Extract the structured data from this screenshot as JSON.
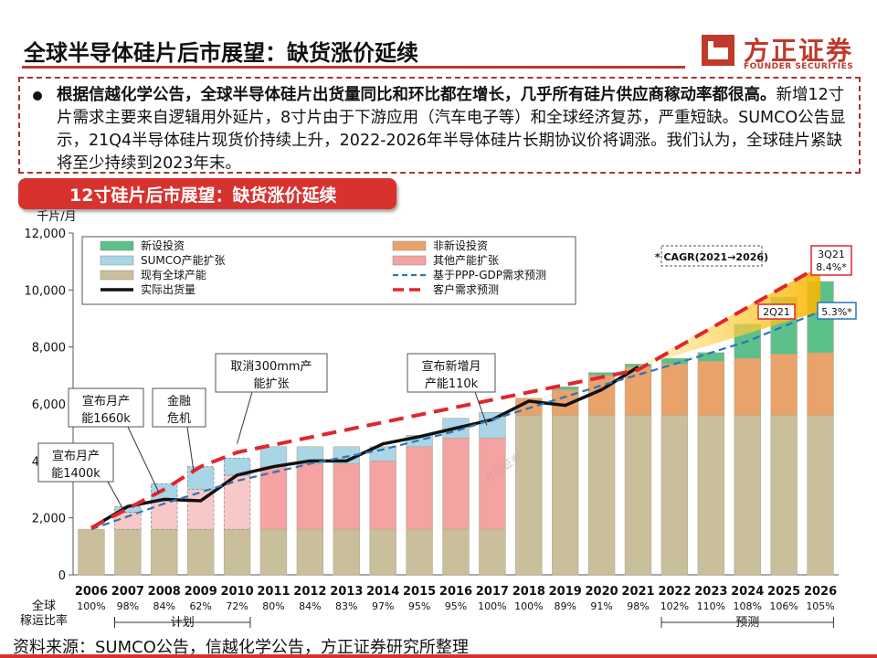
{
  "title": "全球半导体硅片后市展望：缺货涨价延续",
  "logo": {
    "cn": "方正证券",
    "en": "FOUNDER SECURITIES"
  },
  "summary": {
    "bold": "根据信越化学公告，全球半导体硅片出货量同比和环比都在增长，几乎所有硅片供应商稼动率都很高。",
    "text": "新增12寸片需求主要来自逻辑用外延片，8寸片由于下游应用（汽车电子等）和全球经济复苏，严重短缺。SUMCO公告显示，21Q4半导体硅片现货价持续上升，2022-2026年半导体硅片长期协议价将调涨。我们认为，全球硅片紧缺将至少持续到2023年末。"
  },
  "banner": "12寸硅片后市展望：缺货涨价延续",
  "source": "资料来源：SUMCO公告，信越化学公告，方正证券研究所整理",
  "colors": {
    "new_invest": "#5cc08a",
    "sumco_exp": "#a9d5e6",
    "existing": "#c9bf9b",
    "non_new": "#e9a36a",
    "other_exp": "#f4a2a2",
    "other_exp_light": "#f8c8c8",
    "actual": "#111111",
    "ppp": "#2e75b6",
    "customer": "#e0262d",
    "accent": "#d8322f"
  },
  "chart_data": {
    "type": "bar",
    "stacked": true,
    "unit": "千片/月",
    "ylim": [
      0,
      12000
    ],
    "yticks": [
      0,
      2000,
      4000,
      6000,
      8000,
      10000,
      12000
    ],
    "ytick_labels": [
      "0",
      "2,000",
      "4,000",
      "6,000",
      "8,000",
      "10,000",
      "12,000"
    ],
    "categories": [
      "2006",
      "2007",
      "2008",
      "2009",
      "2010",
      "2011",
      "2012",
      "2013",
      "2014",
      "2015",
      "2016",
      "2017",
      "2018",
      "2019",
      "2020",
      "2021",
      "2022",
      "2023",
      "2024",
      "2025",
      "2026"
    ],
    "utilization_label": "全球稼运比率",
    "utilization": [
      "100%",
      "98%",
      "84%",
      "62%",
      "72%",
      "80%",
      "84%",
      "83%",
      "97%",
      "95%",
      "95%",
      "100%",
      "100%",
      "89%",
      "91%",
      "98%",
      "102%",
      "110%",
      "108%",
      "106%",
      "105%"
    ],
    "plan_label": "计划",
    "forecast_label": "预测",
    "series": [
      {
        "key": "existing",
        "name": "现有全球产能",
        "color_key": "existing",
        "values": [
          1600,
          1600,
          1600,
          1600,
          1600,
          1600,
          1600,
          1600,
          1600,
          1600,
          1600,
          1600,
          5600,
          5600,
          5600,
          5600,
          5600,
          5600,
          5600,
          5600,
          5600
        ]
      },
      {
        "key": "other_exp",
        "name": "其他产能扩张",
        "color_key": "other_exp",
        "values": [
          0,
          600,
          1000,
          1400,
          1900,
          2200,
          2300,
          2300,
          2400,
          2900,
          3200,
          3200,
          0,
          0,
          0,
          0,
          0,
          0,
          0,
          0,
          0
        ]
      },
      {
        "key": "non_new",
        "name": "非新设投资",
        "color_key": "non_new",
        "values": [
          0,
          0,
          0,
          0,
          0,
          0,
          0,
          0,
          0,
          0,
          0,
          0,
          600,
          900,
          1400,
          1700,
          1800,
          1900,
          2000,
          2150,
          2200
        ]
      },
      {
        "key": "new_invest",
        "name": "新设投资",
        "color_key": "new_invest",
        "values": [
          0,
          0,
          0,
          0,
          0,
          0,
          0,
          0,
          0,
          0,
          0,
          0,
          0,
          100,
          100,
          100,
          200,
          300,
          1200,
          2000,
          2500
        ]
      },
      {
        "key": "sumco_exp",
        "name": "SUMCO产能扩张",
        "color_key": "sumco_exp",
        "values": [
          0,
          200,
          600,
          800,
          600,
          700,
          600,
          600,
          500,
          400,
          700,
          900,
          0,
          0,
          0,
          0,
          0,
          0,
          0,
          0,
          0
        ]
      }
    ],
    "lighter_years": [
      "2007",
      "2008",
      "2009",
      "2010"
    ],
    "lines": [
      {
        "key": "actual",
        "name": "实际出货量",
        "style": "solid",
        "color_key": "actual",
        "x": [
          "2006",
          "2007",
          "2008",
          "2009",
          "2010",
          "2011",
          "2012",
          "2013",
          "2014",
          "2015",
          "2016",
          "2017",
          "2018",
          "2019",
          "2020",
          "2021"
        ],
        "values": [
          1650,
          2400,
          2650,
          2600,
          3500,
          3800,
          4000,
          4000,
          4600,
          4850,
          5150,
          5450,
          6100,
          5950,
          6500,
          7300
        ]
      },
      {
        "key": "ppp",
        "name": "基于PPP-GDP需求预测",
        "style": "dashed",
        "color_key": "ppp",
        "x": [
          "2006",
          "2008",
          "2010",
          "2012",
          "2014",
          "2016",
          "2018",
          "2020",
          "2022",
          "2024",
          "2026"
        ],
        "values": [
          1600,
          2500,
          3300,
          3900,
          4400,
          5050,
          5850,
          6650,
          7400,
          8200,
          9250
        ]
      },
      {
        "key": "customer",
        "name": "客户需求预测",
        "style": "dashed",
        "color_key": "customer",
        "x": [
          "2006",
          "2008",
          "2009",
          "2010",
          "2021",
          "2026"
        ],
        "values": [
          1650,
          3000,
          3800,
          4300,
          7200,
          10850
        ]
      }
    ],
    "legend": {
      "left": [
        "新设投资",
        "SUMCO产能扩张",
        "现有全球产能",
        "实际出货量"
      ],
      "right": [
        "非新设投资",
        "其他产能扩张",
        "基于PPP-GDP需求预测",
        "客户需求预测"
      ]
    },
    "cagr_box": "* CAGR(2021→2026)",
    "callouts": [
      {
        "text": "3Q21\n8.4%*",
        "color": "#e0262d"
      },
      {
        "text": "2Q21",
        "color": "#e0262d"
      },
      {
        "text": "5.3%*",
        "color": "#2e75b6"
      },
      {
        "text": "宣布月产\n能1400k"
      },
      {
        "text": "宣布月产\n能1660k"
      },
      {
        "text": "金融\n危机"
      },
      {
        "text": "取消300mm产\n能扩张"
      },
      {
        "text": "宣布新增月\n产能110k"
      }
    ],
    "watermark": "方正证券"
  }
}
